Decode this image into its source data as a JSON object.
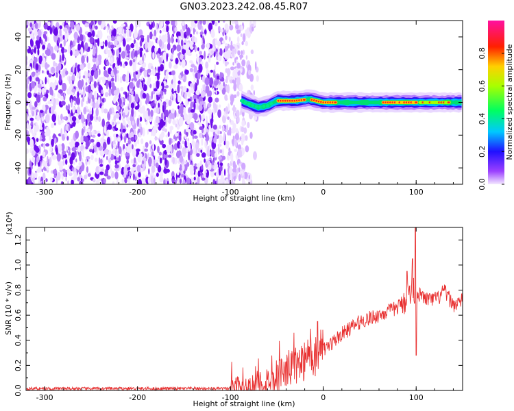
{
  "title": "GN03.2023.242.08.45.R07",
  "chart_data": [
    {
      "type": "heatmap",
      "title": "GN03.2023.242.08.45.R07",
      "xlabel": "Height of straight line (km)",
      "ylabel": "Frequency (Hz)",
      "xlim": [
        -320,
        150
      ],
      "ylim": [
        -50,
        50
      ],
      "x_ticks": [
        -300,
        -200,
        -100,
        0,
        100
      ],
      "y_ticks": [
        -40,
        -20,
        0,
        20,
        40
      ],
      "colorbar": {
        "label": "Normalized spectral amplitude",
        "range": [
          0,
          1
        ],
        "ticks": [
          0.0,
          0.2,
          0.4,
          0.6,
          0.8
        ],
        "colormap": "rainbow (purple-blue-cyan-green-yellow-red-magenta)"
      },
      "noise_region": {
        "x_range": [
          -320,
          -85
        ],
        "color": "#7010ee"
      },
      "signal_band": {
        "x_range": [
          -88,
          150
        ],
        "center_hz": [
          [
            -88,
            1
          ],
          [
            -80,
            -1
          ],
          [
            -70,
            -3
          ],
          [
            -60,
            -2
          ],
          [
            -50,
            1
          ],
          [
            -30,
            1
          ],
          [
            -15,
            2
          ],
          [
            0,
            0
          ],
          [
            50,
            0
          ],
          [
            100,
            0
          ],
          [
            150,
            0
          ]
        ],
        "peak_segments": [
          [
            -48,
            -20,
            0.85
          ],
          [
            -12,
            15,
            0.9
          ],
          [
            65,
            100,
            0.8
          ],
          [
            105,
            135,
            0.55
          ]
        ]
      }
    },
    {
      "type": "line",
      "xlabel": "Height of straight line (km)",
      "ylabel": "SNR (10 * v/v)",
      "y_multiplier": "(x10⁴)",
      "xlim": [
        -320,
        150
      ],
      "ylim": [
        0,
        1.3
      ],
      "x_ticks": [
        -300,
        -200,
        -100,
        0,
        100
      ],
      "y_ticks": [
        0.0,
        0.2,
        0.4,
        0.6,
        0.8,
        1.0,
        1.2
      ],
      "y_tick_labels": [
        "0.0",
        "0.2",
        "0.4",
        "0.6",
        "0.8",
        "1.0",
        "1.2"
      ],
      "series": [
        {
          "color": "#e83030",
          "x": [
            -320,
            -100,
            -75,
            -60,
            -45,
            -30,
            -15,
            0,
            20,
            40,
            60,
            80,
            90,
            95,
            100,
            105,
            115,
            125,
            130,
            140,
            150
          ],
          "y": [
            0.015,
            0.015,
            0.03,
            0.08,
            0.15,
            0.2,
            0.26,
            0.32,
            0.45,
            0.55,
            0.6,
            0.66,
            0.75,
            0.8,
            0.8,
            0.75,
            0.72,
            0.74,
            0.8,
            0.68,
            0.72
          ]
        }
      ],
      "spikes": [
        [
          -6,
          0.55
        ],
        [
          90,
          0.95
        ],
        [
          96,
          1.05
        ],
        [
          99,
          1.3
        ],
        [
          100,
          0.28
        ]
      ]
    }
  ]
}
